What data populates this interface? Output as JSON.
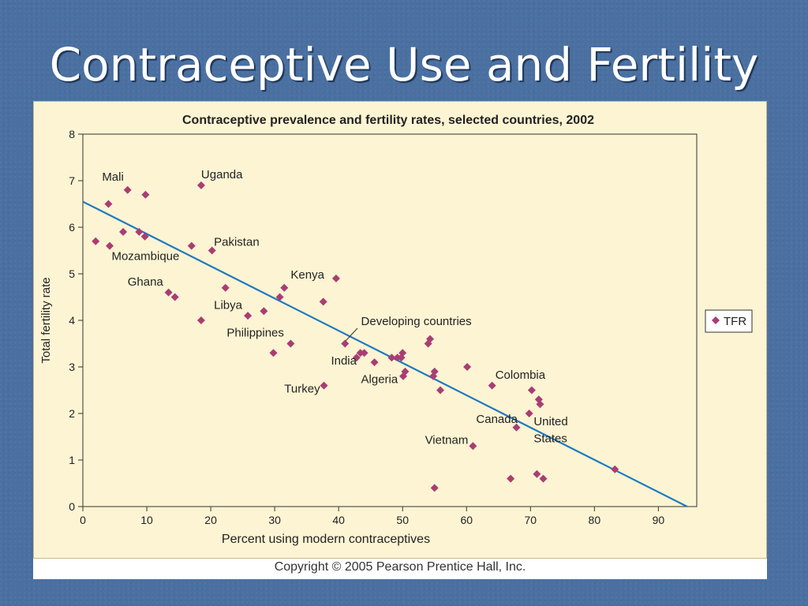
{
  "slide": {
    "title": "Contraceptive Use and Fertility",
    "copyright": "Copyright © 2005 Pearson Prentice Hall, Inc."
  },
  "colors": {
    "background": "#4a70a1",
    "panel": "#fdf4d3",
    "marker": "#a93d74",
    "trendline": "#1f7ac0"
  },
  "chart_data": {
    "type": "scatter",
    "title": "Contraceptive prevalence and fertility rates, selected countries, 2002",
    "xlabel": "Percent using modern contraceptives",
    "ylabel": "Total fertility rate",
    "xlim": [
      0,
      96
    ],
    "ylim": [
      0,
      8
    ],
    "xticks": [
      0,
      10,
      20,
      30,
      40,
      50,
      60,
      70,
      80,
      90
    ],
    "yticks": [
      0,
      1,
      2,
      3,
      4,
      5,
      6,
      7,
      8
    ],
    "grid": false,
    "legend": {
      "position": "right",
      "entries": [
        "TFR"
      ]
    },
    "series": [
      {
        "name": "TFR",
        "points": [
          [
            2,
            5.7
          ],
          [
            4,
            6.5
          ],
          [
            4.2,
            5.6
          ],
          [
            6.3,
            5.9
          ],
          [
            7,
            6.8
          ],
          [
            8.8,
            5.9
          ],
          [
            9.7,
            5.8
          ],
          [
            9.8,
            6.7
          ],
          [
            13.4,
            4.6
          ],
          [
            14.4,
            4.5
          ],
          [
            17,
            5.6
          ],
          [
            18.5,
            4.0
          ],
          [
            18.5,
            6.9
          ],
          [
            20.2,
            5.5
          ],
          [
            22.3,
            4.7
          ],
          [
            25.8,
            4.1
          ],
          [
            28.3,
            4.2
          ],
          [
            29.8,
            3.3
          ],
          [
            30.8,
            4.5
          ],
          [
            31.5,
            4.7
          ],
          [
            32.5,
            3.5
          ],
          [
            37.6,
            4.4
          ],
          [
            37.7,
            2.6
          ],
          [
            39.6,
            4.9
          ],
          [
            41,
            3.5
          ],
          [
            42.8,
            3.2
          ],
          [
            43.4,
            3.3
          ],
          [
            44,
            3.3
          ],
          [
            45.6,
            3.1
          ],
          [
            48.3,
            3.2
          ],
          [
            49.2,
            3.2
          ],
          [
            49.8,
            3.2
          ],
          [
            50,
            3.3
          ],
          [
            50.1,
            2.8
          ],
          [
            50.4,
            2.9
          ],
          [
            54,
            3.5
          ],
          [
            54.3,
            3.6
          ],
          [
            54.8,
            2.8
          ],
          [
            55,
            2.9
          ],
          [
            55.9,
            2.5
          ],
          [
            60.1,
            3.0
          ],
          [
            64,
            2.6
          ],
          [
            70.2,
            2.5
          ],
          [
            71.3,
            2.3
          ],
          [
            71.5,
            2.2
          ],
          [
            69.8,
            2.0
          ],
          [
            67.8,
            1.7
          ],
          [
            61,
            1.3
          ],
          [
            55,
            0.4
          ],
          [
            66.9,
            0.6
          ],
          [
            71,
            0.7
          ],
          [
            72,
            0.6
          ],
          [
            83.2,
            0.8
          ]
        ]
      }
    ],
    "trendline": {
      "label": "Developing countries",
      "x": [
        0,
        94.5
      ],
      "y": [
        6.55,
        0
      ]
    },
    "annotations": [
      {
        "text": "Mali",
        "x": 3,
        "y": 7.0
      },
      {
        "text": "Uganda",
        "x": 18.5,
        "y": 7.05
      },
      {
        "text": "Pakistan",
        "x": 20.5,
        "y": 5.6
      },
      {
        "text": "Mozambique",
        "x": 4.5,
        "y": 5.3
      },
      {
        "text": "Ghana",
        "x": 7,
        "y": 4.75
      },
      {
        "text": "Kenya",
        "x": 32.5,
        "y": 4.9
      },
      {
        "text": "Libya",
        "x": 20.5,
        "y": 4.25
      },
      {
        "text": "Philippines",
        "x": 22.5,
        "y": 3.65
      },
      {
        "text": "Developing countries",
        "x": 43.5,
        "y": 3.9
      },
      {
        "text": "India",
        "x": 38.8,
        "y": 3.05
      },
      {
        "text": "Algeria",
        "x": 43.5,
        "y": 2.65
      },
      {
        "text": "Turkey",
        "x": 31.5,
        "y": 2.45
      },
      {
        "text": "Colombia",
        "x": 64.5,
        "y": 2.75
      },
      {
        "text": "Canada",
        "x": 61.5,
        "y": 1.8
      },
      {
        "text": "United",
        "x": 70.5,
        "y": 1.75
      },
      {
        "text": "States",
        "x": 70.5,
        "y": 1.38
      },
      {
        "text": "Vietnam",
        "x": 53.5,
        "y": 1.35
      }
    ]
  }
}
